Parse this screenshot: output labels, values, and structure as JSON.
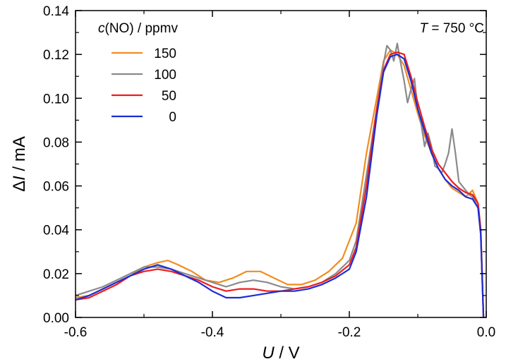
{
  "chart_data": {
    "type": "line",
    "xlabel": {
      "italic": "U",
      "rest": " / V"
    },
    "ylabel": {
      "prefix": "Δ",
      "italic": "I",
      "rest": " / mA"
    },
    "xlim": [
      -0.6,
      0.0
    ],
    "ylim": [
      0.0,
      0.14
    ],
    "x_ticks": [
      -0.6,
      -0.4,
      -0.2,
      0.0
    ],
    "x_tick_labels": [
      "-0.6",
      "-0.4",
      "-0.2",
      "0.0"
    ],
    "y_ticks": [
      0.0,
      0.02,
      0.04,
      0.06,
      0.08,
      0.1,
      0.12,
      0.14
    ],
    "y_tick_labels": [
      "0.00",
      "0.02",
      "0.04",
      "0.06",
      "0.08",
      "0.10",
      "0.12",
      "0.14"
    ],
    "grid": false,
    "legend_placement": "top-left",
    "legend_title": {
      "italic": "c",
      "rest": "(NO) / ppmv"
    },
    "annotation": {
      "italic": "T",
      "rest": " = 750 °C"
    },
    "series": [
      {
        "name": "150",
        "color": "#f28c1e",
        "points": [
          [
            -0.6,
            0.009
          ],
          [
            -0.58,
            0.01
          ],
          [
            -0.56,
            0.013
          ],
          [
            -0.54,
            0.016
          ],
          [
            -0.52,
            0.019
          ],
          [
            -0.5,
            0.023
          ],
          [
            -0.48,
            0.025
          ],
          [
            -0.465,
            0.026
          ],
          [
            -0.45,
            0.024
          ],
          [
            -0.43,
            0.021
          ],
          [
            -0.41,
            0.017
          ],
          [
            -0.39,
            0.016
          ],
          [
            -0.37,
            0.018
          ],
          [
            -0.35,
            0.021
          ],
          [
            -0.33,
            0.021
          ],
          [
            -0.31,
            0.018
          ],
          [
            -0.29,
            0.015
          ],
          [
            -0.27,
            0.015
          ],
          [
            -0.25,
            0.017
          ],
          [
            -0.23,
            0.021
          ],
          [
            -0.21,
            0.027
          ],
          [
            -0.19,
            0.043
          ],
          [
            -0.175,
            0.075
          ],
          [
            -0.16,
            0.1
          ],
          [
            -0.15,
            0.117
          ],
          [
            -0.14,
            0.122
          ],
          [
            -0.13,
            0.12
          ],
          [
            -0.12,
            0.115
          ],
          [
            -0.11,
            0.104
          ],
          [
            -0.1,
            0.093
          ],
          [
            -0.09,
            0.083
          ],
          [
            -0.08,
            0.075
          ],
          [
            -0.07,
            0.068
          ],
          [
            -0.06,
            0.063
          ],
          [
            -0.05,
            0.059
          ],
          [
            -0.04,
            0.057
          ],
          [
            -0.03,
            0.055
          ],
          [
            -0.02,
            0.058
          ],
          [
            -0.012,
            0.052
          ],
          [
            -0.008,
            0.04
          ],
          [
            -0.005,
            0.01
          ],
          [
            -0.004,
            0.0
          ]
        ]
      },
      {
        "name": "100",
        "color": "#8a8a8a",
        "points": [
          [
            -0.6,
            0.01
          ],
          [
            -0.58,
            0.012
          ],
          [
            -0.56,
            0.014
          ],
          [
            -0.54,
            0.017
          ],
          [
            -0.52,
            0.02
          ],
          [
            -0.5,
            0.023
          ],
          [
            -0.48,
            0.023
          ],
          [
            -0.46,
            0.022
          ],
          [
            -0.44,
            0.02
          ],
          [
            -0.42,
            0.018
          ],
          [
            -0.4,
            0.016
          ],
          [
            -0.38,
            0.014
          ],
          [
            -0.36,
            0.016
          ],
          [
            -0.34,
            0.017
          ],
          [
            -0.32,
            0.016
          ],
          [
            -0.3,
            0.014
          ],
          [
            -0.28,
            0.013
          ],
          [
            -0.26,
            0.014
          ],
          [
            -0.24,
            0.016
          ],
          [
            -0.22,
            0.02
          ],
          [
            -0.2,
            0.026
          ],
          [
            -0.19,
            0.035
          ],
          [
            -0.175,
            0.065
          ],
          [
            -0.16,
            0.095
          ],
          [
            -0.15,
            0.116
          ],
          [
            -0.145,
            0.124
          ],
          [
            -0.14,
            0.122
          ],
          [
            -0.135,
            0.117
          ],
          [
            -0.13,
            0.125
          ],
          [
            -0.125,
            0.116
          ],
          [
            -0.12,
            0.108
          ],
          [
            -0.115,
            0.098
          ],
          [
            -0.11,
            0.104
          ],
          [
            -0.105,
            0.109
          ],
          [
            -0.1,
            0.095
          ],
          [
            -0.095,
            0.088
          ],
          [
            -0.09,
            0.078
          ],
          [
            -0.085,
            0.084
          ],
          [
            -0.08,
            0.078
          ],
          [
            -0.075,
            0.069
          ],
          [
            -0.07,
            0.068
          ],
          [
            -0.065,
            0.066
          ],
          [
            -0.06,
            0.07
          ],
          [
            -0.055,
            0.075
          ],
          [
            -0.05,
            0.086
          ],
          [
            -0.045,
            0.075
          ],
          [
            -0.04,
            0.062
          ],
          [
            -0.035,
            0.06
          ],
          [
            -0.03,
            0.058
          ],
          [
            -0.025,
            0.056
          ],
          [
            -0.02,
            0.055
          ],
          [
            -0.012,
            0.05
          ],
          [
            -0.008,
            0.038
          ],
          [
            -0.005,
            0.01
          ],
          [
            -0.004,
            0.0
          ]
        ]
      },
      {
        "name": "50",
        "color": "#ee1c1c",
        "points": [
          [
            -0.6,
            0.008
          ],
          [
            -0.58,
            0.009
          ],
          [
            -0.56,
            0.012
          ],
          [
            -0.54,
            0.015
          ],
          [
            -0.52,
            0.019
          ],
          [
            -0.5,
            0.021
          ],
          [
            -0.48,
            0.022
          ],
          [
            -0.46,
            0.021
          ],
          [
            -0.44,
            0.019
          ],
          [
            -0.42,
            0.017
          ],
          [
            -0.4,
            0.014
          ],
          [
            -0.38,
            0.012
          ],
          [
            -0.36,
            0.013
          ],
          [
            -0.34,
            0.013
          ],
          [
            -0.32,
            0.012
          ],
          [
            -0.3,
            0.012
          ],
          [
            -0.28,
            0.013
          ],
          [
            -0.26,
            0.014
          ],
          [
            -0.24,
            0.016
          ],
          [
            -0.22,
            0.019
          ],
          [
            -0.2,
            0.024
          ],
          [
            -0.19,
            0.032
          ],
          [
            -0.175,
            0.06
          ],
          [
            -0.16,
            0.095
          ],
          [
            -0.15,
            0.113
          ],
          [
            -0.14,
            0.12
          ],
          [
            -0.13,
            0.121
          ],
          [
            -0.12,
            0.12
          ],
          [
            -0.11,
            0.11
          ],
          [
            -0.1,
            0.098
          ],
          [
            -0.09,
            0.087
          ],
          [
            -0.08,
            0.077
          ],
          [
            -0.07,
            0.07
          ],
          [
            -0.06,
            0.066
          ],
          [
            -0.05,
            0.062
          ],
          [
            -0.04,
            0.059
          ],
          [
            -0.03,
            0.057
          ],
          [
            -0.02,
            0.056
          ],
          [
            -0.012,
            0.052
          ],
          [
            -0.008,
            0.04
          ],
          [
            -0.005,
            0.01
          ],
          [
            -0.004,
            0.0
          ]
        ]
      },
      {
        "name": "0",
        "color": "#1c2ed6",
        "points": [
          [
            -0.6,
            0.008
          ],
          [
            -0.58,
            0.01
          ],
          [
            -0.56,
            0.013
          ],
          [
            -0.54,
            0.016
          ],
          [
            -0.52,
            0.019
          ],
          [
            -0.5,
            0.022
          ],
          [
            -0.48,
            0.024
          ],
          [
            -0.46,
            0.022
          ],
          [
            -0.44,
            0.019
          ],
          [
            -0.42,
            0.016
          ],
          [
            -0.4,
            0.012
          ],
          [
            -0.38,
            0.009
          ],
          [
            -0.36,
            0.009
          ],
          [
            -0.34,
            0.01
          ],
          [
            -0.32,
            0.011
          ],
          [
            -0.3,
            0.012
          ],
          [
            -0.28,
            0.012
          ],
          [
            -0.26,
            0.013
          ],
          [
            -0.24,
            0.015
          ],
          [
            -0.22,
            0.018
          ],
          [
            -0.2,
            0.022
          ],
          [
            -0.19,
            0.03
          ],
          [
            -0.175,
            0.055
          ],
          [
            -0.16,
            0.092
          ],
          [
            -0.15,
            0.112
          ],
          [
            -0.14,
            0.119
          ],
          [
            -0.13,
            0.12
          ],
          [
            -0.12,
            0.118
          ],
          [
            -0.11,
            0.108
          ],
          [
            -0.1,
            0.095
          ],
          [
            -0.09,
            0.085
          ],
          [
            -0.08,
            0.075
          ],
          [
            -0.07,
            0.068
          ],
          [
            -0.06,
            0.063
          ],
          [
            -0.05,
            0.06
          ],
          [
            -0.04,
            0.058
          ],
          [
            -0.03,
            0.055
          ],
          [
            -0.02,
            0.054
          ],
          [
            -0.012,
            0.05
          ],
          [
            -0.008,
            0.038
          ],
          [
            -0.005,
            0.01
          ],
          [
            -0.004,
            0.0
          ]
        ]
      }
    ]
  }
}
